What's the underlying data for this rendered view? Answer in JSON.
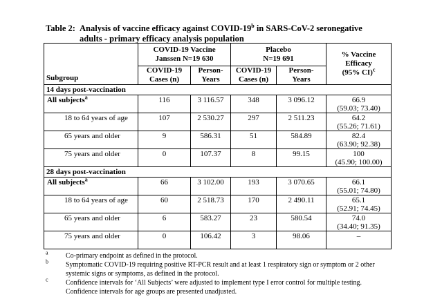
{
  "colors": {
    "text": "#000000",
    "background": "#ffffff",
    "border": "#000000"
  },
  "title": {
    "label": "Table 2:",
    "caption_line1_pre": "Analysis of vaccine efficacy against COVID-19",
    "caption_line1_sup": "b",
    "caption_line1_post": " in SARS-CoV-2 seronegative",
    "caption_line2": "adults - primary efficacy analysis population"
  },
  "table": {
    "col_headers": {
      "subgroup": "Subgroup",
      "vaccine_group_line1": "COVID-19 Vaccine",
      "vaccine_group_line2": "Janssen N=19 630",
      "placebo_group_line1": "Placebo",
      "placebo_group_line2": "N=19 691",
      "cases_line1": "COVID-19",
      "cases_line2": "Cases (n)",
      "py_line1": "Person-",
      "py_line2": "Years",
      "ve_line1": "% Vaccine",
      "ve_line2": "Efficacy",
      "ve_line3": "(95% CI)",
      "ve_sup": "c"
    },
    "sections": [
      {
        "header": "14 days post-vaccination",
        "rows": [
          {
            "label": "All subjects",
            "label_sup": "a",
            "bold": true,
            "vaccine_cases": "116",
            "vaccine_py": "3 116.57",
            "placebo_cases": "348",
            "placebo_py": "3 096.12",
            "ve": "66.9",
            "ci": "(59.03; 73.40)"
          },
          {
            "label": "18 to 64 years of age",
            "label_sup": "",
            "bold": false,
            "vaccine_cases": "107",
            "vaccine_py": "2 530.27",
            "placebo_cases": "297",
            "placebo_py": "2 511.23",
            "ve": "64.2",
            "ci": "(55.26; 71.61)"
          },
          {
            "label": "65 years and older",
            "label_sup": "",
            "bold": false,
            "vaccine_cases": "9",
            "vaccine_py": "586.31",
            "placebo_cases": "51",
            "placebo_py": "584.89",
            "ve": "82.4",
            "ci": "(63.90; 92.38)"
          },
          {
            "label": "75 years and older",
            "label_sup": "",
            "bold": false,
            "vaccine_cases": "0",
            "vaccine_py": "107.37",
            "placebo_cases": "8",
            "placebo_py": "99.15",
            "ve": "100",
            "ci": "(45.90; 100.00)"
          }
        ]
      },
      {
        "header": "28 days post-vaccination",
        "rows": [
          {
            "label": "All subjects",
            "label_sup": "a",
            "bold": true,
            "vaccine_cases": "66",
            "vaccine_py": "3 102.00",
            "placebo_cases": "193",
            "placebo_py": "3 070.65",
            "ve": "66.1",
            "ci": "(55.01; 74.80)"
          },
          {
            "label": "18 to 64 years of age",
            "label_sup": "",
            "bold": false,
            "vaccine_cases": "60",
            "vaccine_py": "2 518.73",
            "placebo_cases": "170",
            "placebo_py": "2 490.11",
            "ve": "65.1",
            "ci": "(52.91; 74.45)"
          },
          {
            "label": "65 years and older",
            "label_sup": "",
            "bold": false,
            "vaccine_cases": "6",
            "vaccine_py": "583.27",
            "placebo_cases": "23",
            "placebo_py": "580.54",
            "ve": "74.0",
            "ci": "(34.40; 91.35)"
          },
          {
            "label": "75 years and older",
            "label_sup": "",
            "bold": false,
            "vaccine_cases": "0",
            "vaccine_py": "106.42",
            "placebo_cases": "3",
            "placebo_py": "98.06",
            "ve": "–",
            "ci": ""
          }
        ]
      }
    ]
  },
  "footnotes": [
    {
      "marker": "a",
      "lines": [
        "Co-primary endpoint as defined in the protocol."
      ]
    },
    {
      "marker": "b",
      "lines": [
        "Symptomatic COVID-19 requiring positive RT-PCR result and at least 1 respiratory sign or symptom or 2 other",
        "systemic signs or symptoms, as defined in the protocol."
      ]
    },
    {
      "marker": "c",
      "lines": [
        "Confidence intervals for ‘All Subjects’ were adjusted to implement type I error control for multiple testing.",
        "Confidence intervals for age groups are presented unadjusted."
      ]
    }
  ]
}
